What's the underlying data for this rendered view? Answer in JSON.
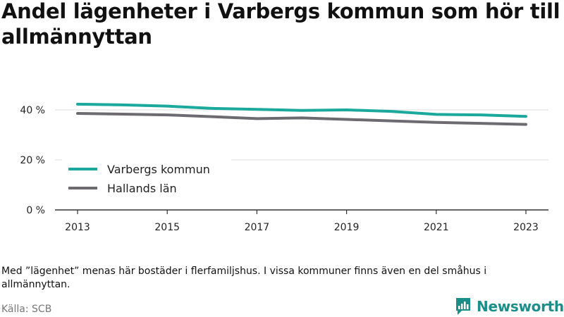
{
  "title": "Andel lägenheter i Varbergs kommun som hör till allmännyttan",
  "note": "Med ”lägenhet” menas här bostäder i flerfamiljshus. I vissa kommuner finns även en del småhus i allmännyttan.",
  "source": "Källa: SCB",
  "brand": "Newsworthy",
  "colors": {
    "varberg": "#1aa99c",
    "halland": "#6d6b70",
    "axis": "#333333",
    "grid": "#dddddd",
    "brand": "#1a8f8a"
  },
  "chart_data": {
    "type": "line",
    "title": "Andel lägenheter i Varbergs kommun som hör till allmännyttan",
    "xlabel": "",
    "ylabel": "",
    "x": [
      2013,
      2014,
      2015,
      2016,
      2017,
      2018,
      2019,
      2020,
      2021,
      2022,
      2023
    ],
    "x_ticks": [
      2013,
      2015,
      2017,
      2019,
      2021,
      2023
    ],
    "y_ticks": [
      0,
      20,
      40
    ],
    "y_tick_labels": [
      "0 %",
      "20 %",
      "40 %"
    ],
    "ylim": [
      0,
      45
    ],
    "grid": true,
    "legend_position": "bottom-left",
    "series": [
      {
        "name": "Varbergs kommun",
        "color": "#1aa99c",
        "values": [
          42.3,
          42.0,
          41.5,
          40.6,
          40.2,
          39.8,
          40.0,
          39.4,
          38.2,
          38.0,
          37.4
        ]
      },
      {
        "name": "Hallands län",
        "color": "#6d6b70",
        "values": [
          38.6,
          38.3,
          38.0,
          37.3,
          36.5,
          36.8,
          36.2,
          35.6,
          35.0,
          34.6,
          34.2
        ]
      }
    ]
  }
}
